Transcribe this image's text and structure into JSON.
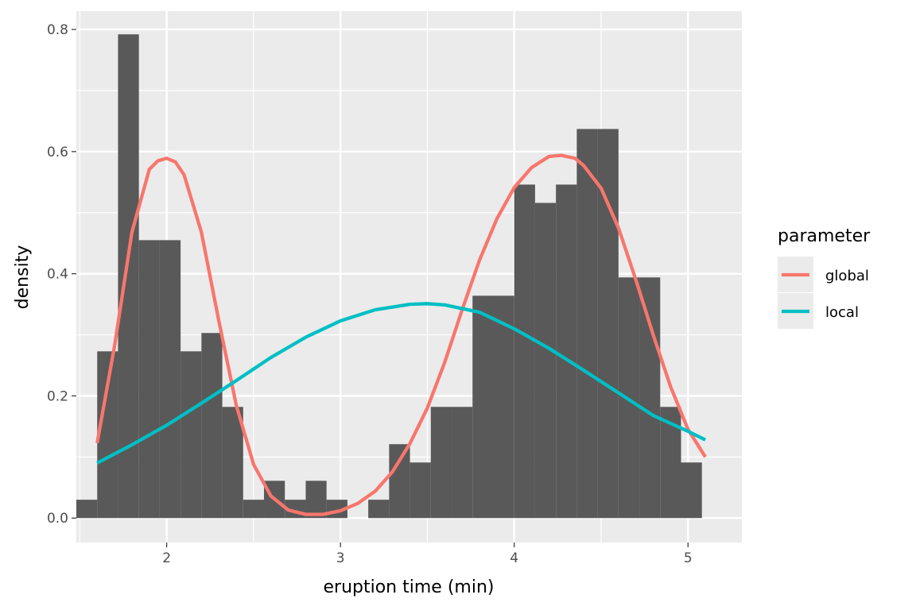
{
  "chart_data": {
    "type": "bar",
    "xlabel": "eruption time (min)",
    "ylabel": "density",
    "xlim": [
      1.48,
      5.31
    ],
    "ylim": [
      -0.04,
      0.83
    ],
    "x_ticks": [
      2,
      3,
      4,
      5
    ],
    "y_ticks": [
      0.0,
      0.2,
      0.4,
      0.6,
      0.8
    ],
    "y_tick_labels": [
      "0.0",
      "0.2",
      "0.4",
      "0.6",
      "0.8"
    ],
    "grid": true,
    "histogram": {
      "bin_width": 0.12,
      "bin_starts": [
        1.48,
        1.6,
        1.72,
        1.84,
        1.96,
        2.08,
        2.2,
        2.32,
        2.44,
        2.56,
        2.68,
        2.8,
        2.92,
        3.04,
        3.16,
        3.28,
        3.4,
        3.52,
        3.64,
        3.76,
        3.88,
        4.0,
        4.12,
        4.24,
        4.36,
        4.48,
        4.6,
        4.72,
        4.84,
        4.96
      ],
      "density": [
        0.03,
        0.273,
        0.792,
        0.455,
        0.455,
        0.273,
        0.303,
        0.182,
        0.03,
        0.061,
        0.03,
        0.061,
        0.03,
        0.0,
        0.03,
        0.121,
        0.091,
        0.182,
        0.182,
        0.364,
        0.364,
        0.546,
        0.516,
        0.546,
        0.637,
        0.637,
        0.394,
        0.394,
        0.182,
        0.091
      ],
      "color": "#595959"
    },
    "legend": {
      "title": "parameter",
      "position": "right"
    },
    "series": [
      {
        "name": "global",
        "color": "#F8766D",
        "x": [
          1.6,
          1.7,
          1.8,
          1.9,
          1.95,
          2.0,
          2.05,
          2.1,
          2.2,
          2.3,
          2.4,
          2.5,
          2.6,
          2.7,
          2.8,
          2.9,
          3.0,
          3.1,
          3.2,
          3.3,
          3.4,
          3.5,
          3.6,
          3.7,
          3.8,
          3.9,
          4.0,
          4.1,
          4.2,
          4.27,
          4.35,
          4.4,
          4.5,
          4.6,
          4.7,
          4.8,
          4.9,
          5.0,
          5.1
        ],
        "y": [
          0.123,
          0.282,
          0.468,
          0.571,
          0.585,
          0.589,
          0.583,
          0.562,
          0.468,
          0.323,
          0.185,
          0.088,
          0.036,
          0.013,
          0.006,
          0.006,
          0.012,
          0.024,
          0.044,
          0.076,
          0.122,
          0.18,
          0.255,
          0.341,
          0.422,
          0.49,
          0.541,
          0.574,
          0.592,
          0.594,
          0.589,
          0.577,
          0.54,
          0.475,
          0.39,
          0.3,
          0.215,
          0.145,
          0.1
        ]
      },
      {
        "name": "local",
        "color": "#00BFC4",
        "x": [
          1.6,
          1.8,
          2.0,
          2.2,
          2.4,
          2.6,
          2.8,
          3.0,
          3.2,
          3.4,
          3.5,
          3.6,
          3.8,
          4.0,
          4.2,
          4.4,
          4.6,
          4.8,
          5.0,
          5.1
        ],
        "y": [
          0.09,
          0.12,
          0.152,
          0.188,
          0.225,
          0.263,
          0.296,
          0.323,
          0.341,
          0.35,
          0.351,
          0.349,
          0.337,
          0.31,
          0.278,
          0.242,
          0.205,
          0.168,
          0.142,
          0.128
        ]
      }
    ]
  }
}
